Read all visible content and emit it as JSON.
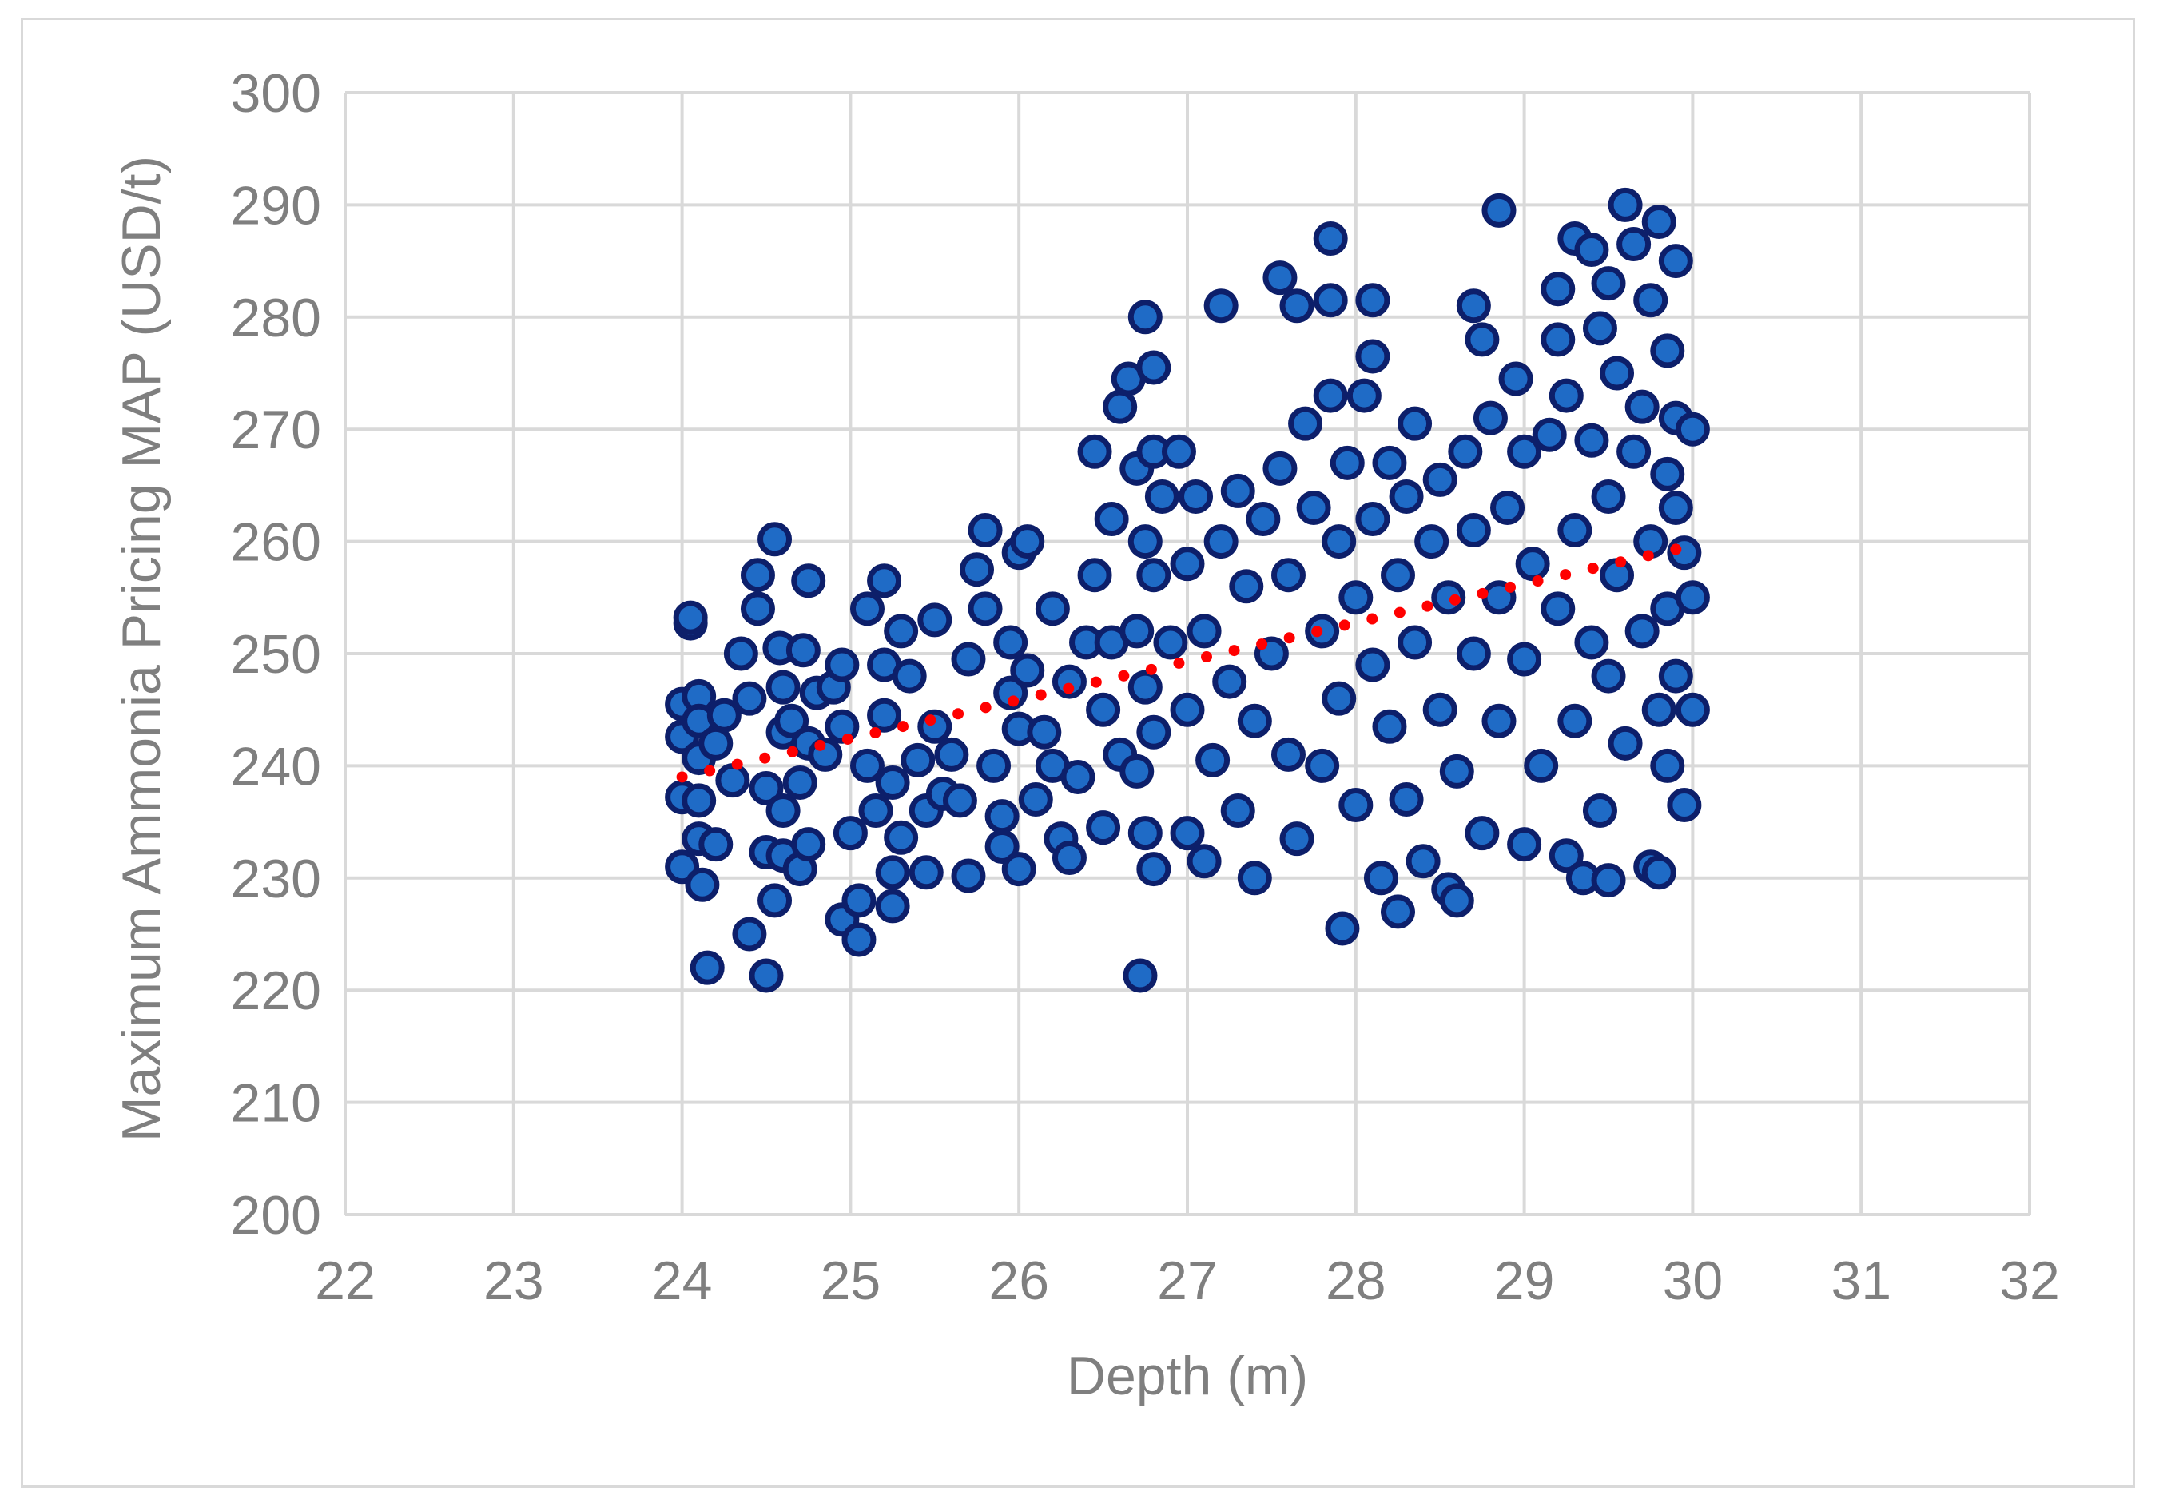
{
  "chart_data": {
    "type": "scatter",
    "title": "",
    "xlabel": "Depth (m)",
    "ylabel": "Maximum Ammonia Pricing MAP (USD/t)",
    "xlim": [
      22,
      32
    ],
    "ylim": [
      200,
      300
    ],
    "x_ticks": [
      "22",
      "23",
      "24",
      "25",
      "26",
      "27",
      "28",
      "29",
      "30",
      "31",
      "32"
    ],
    "y_ticks": [
      "200",
      "210",
      "220",
      "230",
      "240",
      "250",
      "260",
      "270",
      "280",
      "290",
      "300"
    ],
    "grid": true,
    "legend": "none",
    "colors": {
      "points_fill": "#1f6bc6",
      "points_stroke": "#0d1f6a",
      "trendline": "#ff0000",
      "grid": "#d9d9d9",
      "text": "#7f7f7f"
    },
    "trendline": {
      "type": "linear",
      "style": "dotted",
      "x": [
        24.0,
        29.9
      ],
      "y": [
        239.0,
        259.3
      ]
    },
    "series": [
      {
        "points": [
          [
            24.0,
            245.5
          ],
          [
            24.0,
            242.6
          ],
          [
            24.0,
            237.2
          ],
          [
            24.0,
            231.0
          ],
          [
            24.05,
            252.7
          ],
          [
            24.05,
            253.2
          ],
          [
            24.1,
            246.2
          ],
          [
            24.1,
            244.0
          ],
          [
            24.1,
            240.7
          ],
          [
            24.1,
            236.9
          ],
          [
            24.1,
            233.5
          ],
          [
            24.12,
            229.4
          ],
          [
            24.15,
            222.0
          ],
          [
            24.2,
            242.0
          ],
          [
            24.2,
            233.0
          ],
          [
            24.25,
            244.5
          ],
          [
            24.3,
            238.7
          ],
          [
            24.35,
            250.0
          ],
          [
            24.4,
            246.0
          ],
          [
            24.4,
            225.0
          ],
          [
            24.45,
            257.0
          ],
          [
            24.45,
            254.0
          ],
          [
            24.5,
            238.0
          ],
          [
            24.5,
            232.3
          ],
          [
            24.5,
            221.3
          ],
          [
            24.55,
            228.0
          ],
          [
            24.55,
            260.2
          ],
          [
            24.58,
            250.5
          ],
          [
            24.6,
            247.0
          ],
          [
            24.6,
            243.0
          ],
          [
            24.6,
            236.0
          ],
          [
            24.6,
            232.0
          ],
          [
            24.65,
            244.0
          ],
          [
            24.7,
            238.5
          ],
          [
            24.7,
            230.8
          ],
          [
            24.72,
            250.3
          ],
          [
            24.75,
            256.5
          ],
          [
            24.75,
            242.0
          ],
          [
            24.75,
            233.0
          ],
          [
            24.8,
            246.5
          ],
          [
            24.85,
            241.0
          ],
          [
            24.9,
            247.0
          ],
          [
            24.95,
            249.0
          ],
          [
            24.95,
            243.5
          ],
          [
            24.95,
            226.3
          ],
          [
            25.0,
            234.0
          ],
          [
            25.05,
            228.0
          ],
          [
            25.05,
            224.5
          ],
          [
            25.1,
            254.0
          ],
          [
            25.1,
            240.0
          ],
          [
            25.15,
            236.0
          ],
          [
            25.2,
            256.5
          ],
          [
            25.2,
            249.0
          ],
          [
            25.2,
            244.5
          ],
          [
            25.25,
            238.5
          ],
          [
            25.25,
            230.5
          ],
          [
            25.25,
            227.5
          ],
          [
            25.3,
            252.0
          ],
          [
            25.3,
            233.6
          ],
          [
            25.35,
            248.0
          ],
          [
            25.4,
            240.5
          ],
          [
            25.45,
            236.0
          ],
          [
            25.45,
            230.5
          ],
          [
            25.5,
            253.0
          ],
          [
            25.5,
            243.5
          ],
          [
            25.55,
            237.5
          ],
          [
            25.6,
            241.0
          ],
          [
            25.65,
            236.9
          ],
          [
            25.7,
            249.5
          ],
          [
            25.7,
            230.2
          ],
          [
            25.75,
            257.5
          ],
          [
            25.8,
            261.0
          ],
          [
            25.8,
            254.0
          ],
          [
            25.85,
            240.0
          ],
          [
            25.9,
            235.5
          ],
          [
            25.9,
            232.8
          ],
          [
            25.95,
            251.0
          ],
          [
            25.95,
            246.5
          ],
          [
            26.0,
            259.0
          ],
          [
            26.0,
            243.3
          ],
          [
            26.0,
            230.8
          ],
          [
            26.05,
            260.0
          ],
          [
            26.05,
            248.5
          ],
          [
            26.1,
            237.0
          ],
          [
            26.15,
            243.0
          ],
          [
            26.2,
            254.0
          ],
          [
            26.2,
            240.0
          ],
          [
            26.25,
            233.5
          ],
          [
            26.3,
            247.5
          ],
          [
            26.3,
            231.8
          ],
          [
            26.35,
            239.0
          ],
          [
            26.4,
            251.0
          ],
          [
            26.45,
            268.0
          ],
          [
            26.45,
            257.0
          ],
          [
            26.5,
            245.0
          ],
          [
            26.5,
            234.5
          ],
          [
            26.55,
            262.0
          ],
          [
            26.55,
            251.0
          ],
          [
            26.6,
            272.0
          ],
          [
            26.6,
            241.0
          ],
          [
            26.65,
            274.5
          ],
          [
            26.7,
            266.5
          ],
          [
            26.7,
            252.0
          ],
          [
            26.7,
            239.5
          ],
          [
            26.72,
            221.3
          ],
          [
            26.75,
            280.0
          ],
          [
            26.75,
            260.0
          ],
          [
            26.75,
            247.0
          ],
          [
            26.75,
            234.0
          ],
          [
            26.8,
            275.5
          ],
          [
            26.8,
            268.0
          ],
          [
            26.8,
            257.0
          ],
          [
            26.8,
            243.0
          ],
          [
            26.8,
            230.8
          ],
          [
            26.85,
            264.0
          ],
          [
            26.9,
            251.0
          ],
          [
            26.95,
            268.0
          ],
          [
            27.0,
            258.0
          ],
          [
            27.0,
            245.0
          ],
          [
            27.0,
            234.0
          ],
          [
            27.05,
            264.0
          ],
          [
            27.1,
            252.0
          ],
          [
            27.1,
            231.5
          ],
          [
            27.15,
            240.5
          ],
          [
            27.2,
            281.0
          ],
          [
            27.2,
            260.0
          ],
          [
            27.25,
            247.5
          ],
          [
            27.3,
            264.5
          ],
          [
            27.3,
            236.0
          ],
          [
            27.35,
            256.0
          ],
          [
            27.4,
            244.0
          ],
          [
            27.4,
            230.0
          ],
          [
            27.45,
            262.0
          ],
          [
            27.5,
            250.0
          ],
          [
            27.55,
            283.5
          ],
          [
            27.55,
            266.5
          ],
          [
            27.6,
            257.0
          ],
          [
            27.6,
            241.0
          ],
          [
            27.65,
            281.0
          ],
          [
            27.65,
            233.5
          ],
          [
            27.7,
            270.5
          ],
          [
            27.75,
            263.0
          ],
          [
            27.8,
            252.0
          ],
          [
            27.8,
            240.0
          ],
          [
            27.85,
            287.0
          ],
          [
            27.85,
            281.5
          ],
          [
            27.85,
            273.0
          ],
          [
            27.9,
            260.0
          ],
          [
            27.9,
            246.0
          ],
          [
            27.92,
            225.5
          ],
          [
            27.95,
            267.0
          ],
          [
            28.0,
            255.0
          ],
          [
            28.0,
            236.5
          ],
          [
            28.05,
            273.0
          ],
          [
            28.1,
            281.5
          ],
          [
            28.1,
            276.5
          ],
          [
            28.1,
            262.0
          ],
          [
            28.1,
            249.0
          ],
          [
            28.15,
            230.0
          ],
          [
            28.2,
            267.0
          ],
          [
            28.2,
            243.5
          ],
          [
            28.25,
            257.0
          ],
          [
            28.25,
            227.0
          ],
          [
            28.3,
            264.0
          ],
          [
            28.3,
            237.0
          ],
          [
            28.35,
            270.5
          ],
          [
            28.35,
            251.0
          ],
          [
            28.4,
            231.5
          ],
          [
            28.45,
            260.0
          ],
          [
            28.5,
            265.5
          ],
          [
            28.5,
            245.0
          ],
          [
            28.55,
            255.0
          ],
          [
            28.55,
            229.0
          ],
          [
            28.6,
            239.5
          ],
          [
            28.6,
            228.0
          ],
          [
            28.65,
            268.0
          ],
          [
            28.7,
            281.0
          ],
          [
            28.7,
            261.0
          ],
          [
            28.7,
            250.0
          ],
          [
            28.75,
            278.0
          ],
          [
            28.75,
            234.0
          ],
          [
            28.8,
            271.0
          ],
          [
            28.85,
            289.5
          ],
          [
            28.85,
            255.0
          ],
          [
            28.85,
            244.0
          ],
          [
            28.9,
            263.0
          ],
          [
            28.95,
            274.5
          ],
          [
            29.0,
            268.0
          ],
          [
            29.0,
            249.5
          ],
          [
            29.0,
            233.0
          ],
          [
            29.05,
            258.0
          ],
          [
            29.1,
            240.0
          ],
          [
            29.15,
            269.5
          ],
          [
            29.2,
            282.5
          ],
          [
            29.2,
            278.0
          ],
          [
            29.2,
            254.0
          ],
          [
            29.25,
            273.0
          ],
          [
            29.25,
            232.0
          ],
          [
            29.3,
            287.0
          ],
          [
            29.3,
            261.0
          ],
          [
            29.3,
            244.0
          ],
          [
            29.35,
            230.0
          ],
          [
            29.4,
            286.0
          ],
          [
            29.4,
            269.0
          ],
          [
            29.4,
            251.0
          ],
          [
            29.45,
            279.0
          ],
          [
            29.45,
            236.0
          ],
          [
            29.5,
            283.0
          ],
          [
            29.5,
            264.0
          ],
          [
            29.5,
            248.0
          ],
          [
            29.5,
            229.8
          ],
          [
            29.55,
            275.0
          ],
          [
            29.55,
            257.0
          ],
          [
            29.6,
            290.0
          ],
          [
            29.6,
            242.0
          ],
          [
            29.65,
            286.5
          ],
          [
            29.65,
            268.0
          ],
          [
            29.7,
            252.0
          ],
          [
            29.7,
            272.0
          ],
          [
            29.75,
            281.5
          ],
          [
            29.75,
            260.0
          ],
          [
            29.75,
            231.0
          ],
          [
            29.8,
            288.5
          ],
          [
            29.8,
            245.0
          ],
          [
            29.8,
            230.5
          ],
          [
            29.85,
            277.0
          ],
          [
            29.85,
            266.0
          ],
          [
            29.85,
            254.0
          ],
          [
            29.85,
            240.0
          ],
          [
            29.9,
            285.0
          ],
          [
            29.9,
            271.0
          ],
          [
            29.9,
            263.0
          ],
          [
            29.9,
            248.0
          ],
          [
            29.95,
            259.0
          ],
          [
            29.95,
            236.5
          ],
          [
            30.0,
            270.0
          ],
          [
            30.0,
            255.0
          ],
          [
            30.0,
            245.0
          ]
        ]
      }
    ]
  }
}
